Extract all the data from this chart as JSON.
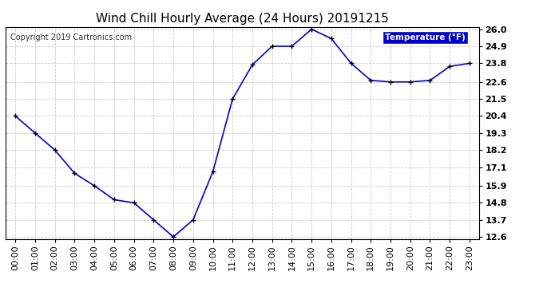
{
  "title": "Wind Chill Hourly Average (24 Hours) 20191215",
  "copyright_text": "Copyright 2019 Cartronics.com",
  "legend_label": "Temperature (°F)",
  "hours": [
    "00:00",
    "01:00",
    "02:00",
    "03:00",
    "04:00",
    "05:00",
    "06:00",
    "07:00",
    "08:00",
    "09:00",
    "10:00",
    "11:00",
    "12:00",
    "13:00",
    "14:00",
    "15:00",
    "16:00",
    "17:00",
    "18:00",
    "19:00",
    "20:00",
    "21:00",
    "22:00",
    "23:00"
  ],
  "values": [
    20.4,
    19.3,
    18.2,
    16.7,
    15.9,
    15.0,
    14.8,
    13.7,
    12.6,
    13.7,
    16.8,
    21.5,
    23.7,
    24.9,
    24.9,
    26.0,
    25.4,
    23.8,
    22.7,
    22.6,
    22.6,
    22.7,
    23.6,
    23.8
  ],
  "ylim_min": 12.6,
  "ylim_max": 26.0,
  "yticks": [
    12.6,
    13.7,
    14.8,
    15.9,
    17.1,
    18.2,
    19.3,
    20.4,
    21.5,
    22.6,
    23.8,
    24.9,
    26.0
  ],
  "line_color": "#0000cc",
  "marker_color": "#000000",
  "bg_color": "#ffffff",
  "grid_color": "#cccccc",
  "legend_bg": "#0000cc",
  "legend_text_color": "#ffffff",
  "title_fontsize": 11,
  "copyright_fontsize": 7,
  "tick_fontsize": 8,
  "border_color": "#000000"
}
